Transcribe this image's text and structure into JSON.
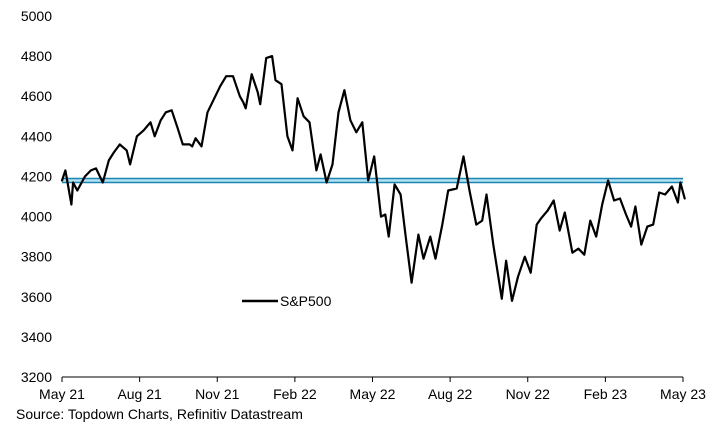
{
  "chart_data": {
    "type": "line",
    "title": "",
    "xlabel": "",
    "ylabel": "",
    "ylim": [
      3200,
      5000
    ],
    "yticks": [
      3200,
      3400,
      3600,
      3800,
      4000,
      4200,
      4400,
      4600,
      4800,
      5000
    ],
    "xticks": [
      "May 21",
      "Aug 21",
      "Nov 21",
      "Feb 22",
      "May 22",
      "Aug 22",
      "Nov 22",
      "Feb 23",
      "May 23"
    ],
    "xrange": [
      "2021-05-01",
      "2023-05-01"
    ],
    "grid": false,
    "legend_position": "center-left",
    "source": "Source: Topdown Charts, Refinitiv Datastream",
    "colors": {
      "series": "#000000",
      "reference_band": "#2aa9d6",
      "reference_band_edge": "#1b86b3"
    },
    "reference_band": {
      "y_low": 4170,
      "y_high": 4190
    },
    "series": [
      {
        "name": "S&P500",
        "x": [
          "2021-05-01",
          "2021-05-05",
          "2021-05-12",
          "2021-05-14",
          "2021-05-19",
          "2021-05-28",
          "2021-06-04",
          "2021-06-10",
          "2021-06-18",
          "2021-06-25",
          "2021-07-01",
          "2021-07-08",
          "2021-07-16",
          "2021-07-20",
          "2021-07-28",
          "2021-08-05",
          "2021-08-13",
          "2021-08-18",
          "2021-08-25",
          "2021-08-31",
          "2021-09-07",
          "2021-09-14",
          "2021-09-20",
          "2021-09-28",
          "2021-10-01",
          "2021-10-05",
          "2021-10-12",
          "2021-10-19",
          "2021-10-26",
          "2021-11-03",
          "2021-11-10",
          "2021-11-18",
          "2021-11-26",
          "2021-11-30",
          "2021-12-03",
          "2021-12-10",
          "2021-12-17",
          "2021-12-20",
          "2021-12-27",
          "2022-01-03",
          "2022-01-07",
          "2022-01-14",
          "2022-01-21",
          "2022-01-27",
          "2022-02-02",
          "2022-02-09",
          "2022-02-16",
          "2022-02-24",
          "2022-03-01",
          "2022-03-08",
          "2022-03-15",
          "2022-03-22",
          "2022-03-29",
          "2022-04-05",
          "2022-04-12",
          "2022-04-19",
          "2022-04-26",
          "2022-05-03",
          "2022-05-11",
          "2022-05-16",
          "2022-05-20",
          "2022-05-27",
          "2022-06-03",
          "2022-06-09",
          "2022-06-16",
          "2022-06-24",
          "2022-06-30",
          "2022-07-08",
          "2022-07-14",
          "2022-07-22",
          "2022-07-29",
          "2022-08-08",
          "2022-08-16",
          "2022-08-23",
          "2022-08-31",
          "2022-09-07",
          "2022-09-12",
          "2022-09-20",
          "2022-09-30",
          "2022-10-05",
          "2022-10-12",
          "2022-10-19",
          "2022-10-27",
          "2022-11-03",
          "2022-11-10",
          "2022-11-15",
          "2022-11-23",
          "2022-11-30",
          "2022-12-07",
          "2022-12-13",
          "2022-12-22",
          "2022-12-29",
          "2023-01-05",
          "2023-01-12",
          "2023-01-19",
          "2023-01-26",
          "2023-02-02",
          "2023-02-09",
          "2023-02-16",
          "2023-02-23",
          "2023-03-01",
          "2023-03-06",
          "2023-03-13",
          "2023-03-20",
          "2023-03-27",
          "2023-04-03",
          "2023-04-10",
          "2023-04-18",
          "2023-04-25",
          "2023-04-28",
          "2023-05-03"
        ],
        "values": [
          4180,
          4230,
          4060,
          4170,
          4130,
          4200,
          4230,
          4240,
          4170,
          4280,
          4320,
          4360,
          4330,
          4260,
          4400,
          4430,
          4470,
          4400,
          4480,
          4520,
          4530,
          4440,
          4360,
          4360,
          4350,
          4390,
          4350,
          4520,
          4580,
          4650,
          4700,
          4700,
          4600,
          4570,
          4540,
          4710,
          4620,
          4560,
          4790,
          4800,
          4680,
          4660,
          4400,
          4330,
          4590,
          4500,
          4470,
          4230,
          4310,
          4170,
          4260,
          4520,
          4630,
          4480,
          4420,
          4470,
          4180,
          4300,
          4000,
          4010,
          3900,
          4160,
          4110,
          3900,
          3670,
          3910,
          3790,
          3900,
          3790,
          3960,
          4130,
          4140,
          4300,
          4130,
          3960,
          3980,
          4110,
          3860,
          3590,
          3780,
          3580,
          3700,
          3800,
          3720,
          3960,
          3990,
          4030,
          4080,
          3930,
          4020,
          3820,
          3840,
          3810,
          3980,
          3900,
          4060,
          4180,
          4080,
          4090,
          4010,
          3950,
          4050,
          3860,
          3950,
          3960,
          4120,
          4110,
          4150,
          4070,
          4170,
          4090
        ]
      }
    ]
  }
}
